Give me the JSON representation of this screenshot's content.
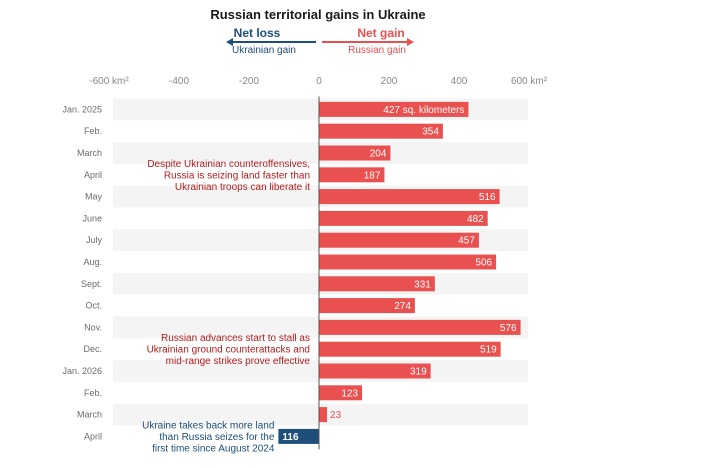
{
  "chart_data": {
    "type": "bar",
    "orientation": "horizontal",
    "title": "Russian territorial gains in Ukraine",
    "legend": {
      "loss": {
        "label": "Net loss",
        "sub": "Ukrainian gain",
        "color": "#1d4f7a"
      },
      "gain": {
        "label": "Net gain",
        "sub": "Russian gain",
        "color": "#e8514f"
      }
    },
    "xlim": [
      -600,
      600
    ],
    "ticks": [
      -600,
      -400,
      -200,
      0,
      200,
      400,
      600
    ],
    "tick_labels": [
      "-600 km²",
      "-400",
      "-200",
      "0",
      "200",
      "400",
      "600 km²"
    ],
    "categories": [
      "Jan. 2025",
      "Feb.",
      "March",
      "April",
      "May",
      "June",
      "July",
      "Aug.",
      "Sept.",
      "Oct.",
      "Nov.",
      "Dec.",
      "Jan. 2026",
      "Feb.",
      "March",
      "April"
    ],
    "values": [
      427,
      354,
      204,
      187,
      516,
      482,
      457,
      506,
      331,
      274,
      576,
      519,
      319,
      123,
      23,
      -116
    ],
    "value_labels": [
      "427 sq. kilometers",
      "354",
      "204",
      "187",
      "516",
      "482",
      "457",
      "506",
      "331",
      "274",
      "576",
      "519",
      "319",
      "123",
      "23",
      "116"
    ],
    "colors": {
      "positive": "#e8514f",
      "negative": "#1d4f7a",
      "band": "#f4f4f4",
      "zero_line": "#555555"
    },
    "annotations": [
      {
        "lines": [
          "Despite Ukrainian counteroffensives,",
          "Russia is seizing land faster than",
          "Ukrainian troops can liberate it"
        ],
        "color": "#b31b1b",
        "row": 3
      },
      {
        "lines": [
          "Russian advances start to stall as",
          "Ukrainian ground counterattacks and",
          "mid-range strikes prove effective"
        ],
        "color": "#b31b1b",
        "row": 11
      },
      {
        "lines": [
          "Ukraine takes back more land",
          "than Russia seizes for the",
          "first time since August 2024"
        ],
        "color": "#1d4f7a",
        "row": 15
      }
    ]
  }
}
